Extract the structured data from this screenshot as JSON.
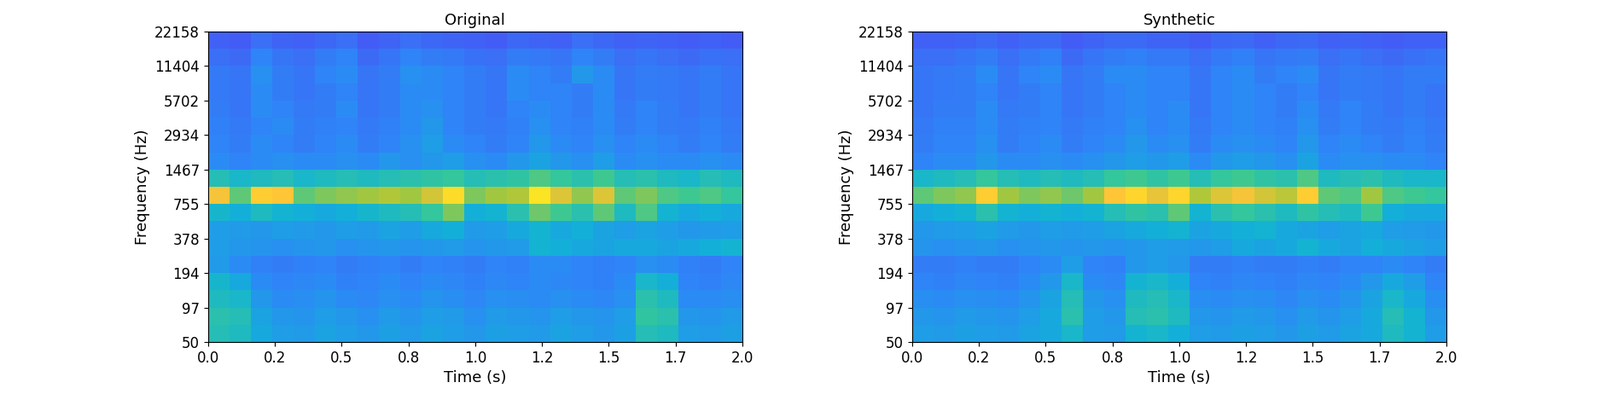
{
  "chart_data": [
    {
      "type": "heatmap",
      "title": "Original",
      "x_label": "Time (s)",
      "y_label": "Frequency (Hz)",
      "log": "y",
      "xlim": [
        0,
        2.0
      ],
      "xticks": [
        {
          "value": 0,
          "label": "0.0"
        },
        {
          "value": 0.25,
          "label": "0.2"
        },
        {
          "value": 0.5,
          "label": "0.5"
        },
        {
          "value": 0.75,
          "label": "0.8"
        },
        {
          "value": 1.0,
          "label": "1.0"
        },
        {
          "value": 1.25,
          "label": "1.2"
        },
        {
          "value": 1.5,
          "label": "1.5"
        },
        {
          "value": 1.75,
          "label": "1.7"
        },
        {
          "value": 2.0,
          "label": "2.0"
        }
      ],
      "ylim": [
        50,
        22158
      ],
      "yticks": [
        50,
        97,
        194,
        378,
        755,
        1467,
        2934,
        5702,
        11404,
        22158
      ],
      "color_range": [
        0,
        1
      ],
      "time_edges": [
        0,
        0.08,
        0.16,
        0.24,
        0.32,
        0.4,
        0.48,
        0.56,
        0.64,
        0.72,
        0.8,
        0.88,
        0.96,
        1.04,
        1.12,
        1.2,
        1.28,
        1.36,
        1.44,
        1.52,
        1.6,
        1.68,
        1.76,
        1.84,
        1.92,
        2.0
      ],
      "freq_edges": [
        50,
        70,
        98,
        138,
        194,
        272,
        381,
        535,
        751,
        1053,
        1478,
        2074,
        2910,
        4083,
        5728,
        8037,
        11276,
        15820,
        22158
      ],
      "cells": [
        [
          0.5,
          0.48,
          0.4,
          0.36,
          0.35,
          0.38,
          0.36,
          0.34,
          0.37,
          0.35,
          0.38,
          0.36,
          0.34,
          0.37,
          0.36,
          0.35,
          0.38,
          0.36,
          0.34,
          0.37,
          0.5,
          0.48,
          0.36,
          0.35,
          0.37
        ],
        [
          0.52,
          0.5,
          0.38,
          0.34,
          0.33,
          0.36,
          0.34,
          0.32,
          0.35,
          0.33,
          0.36,
          0.35,
          0.32,
          0.35,
          0.34,
          0.33,
          0.36,
          0.34,
          0.33,
          0.36,
          0.55,
          0.52,
          0.34,
          0.33,
          0.35
        ],
        [
          0.48,
          0.46,
          0.34,
          0.3,
          0.31,
          0.33,
          0.3,
          0.29,
          0.32,
          0.3,
          0.33,
          0.31,
          0.29,
          0.32,
          0.31,
          0.3,
          0.32,
          0.3,
          0.29,
          0.32,
          0.52,
          0.48,
          0.3,
          0.3,
          0.31
        ],
        [
          0.45,
          0.4,
          0.3,
          0.28,
          0.29,
          0.3,
          0.27,
          0.28,
          0.3,
          0.28,
          0.3,
          0.29,
          0.27,
          0.29,
          0.28,
          0.3,
          0.29,
          0.28,
          0.27,
          0.3,
          0.46,
          0.42,
          0.28,
          0.27,
          0.29
        ],
        [
          0.35,
          0.3,
          0.27,
          0.26,
          0.27,
          0.28,
          0.26,
          0.27,
          0.28,
          0.26,
          0.28,
          0.27,
          0.26,
          0.28,
          0.27,
          0.3,
          0.3,
          0.28,
          0.27,
          0.28,
          0.32,
          0.3,
          0.27,
          0.26,
          0.28
        ],
        [
          0.36,
          0.34,
          0.33,
          0.32,
          0.33,
          0.34,
          0.32,
          0.33,
          0.34,
          0.33,
          0.34,
          0.35,
          0.33,
          0.34,
          0.35,
          0.44,
          0.42,
          0.4,
          0.38,
          0.4,
          0.4,
          0.38,
          0.4,
          0.42,
          0.44
        ],
        [
          0.36,
          0.35,
          0.34,
          0.36,
          0.35,
          0.34,
          0.36,
          0.35,
          0.38,
          0.36,
          0.4,
          0.42,
          0.35,
          0.36,
          0.4,
          0.44,
          0.4,
          0.42,
          0.38,
          0.36,
          0.38,
          0.36,
          0.34,
          0.35,
          0.36
        ],
        [
          0.45,
          0.42,
          0.48,
          0.44,
          0.42,
          0.4,
          0.42,
          0.45,
          0.48,
          0.5,
          0.56,
          0.66,
          0.42,
          0.44,
          0.52,
          0.64,
          0.58,
          0.52,
          0.62,
          0.48,
          0.6,
          0.44,
          0.4,
          0.42,
          0.4
        ],
        [
          0.84,
          0.62,
          0.88,
          0.86,
          0.62,
          0.66,
          0.68,
          0.7,
          0.72,
          0.7,
          0.78,
          0.92,
          0.66,
          0.7,
          0.72,
          0.94,
          0.8,
          0.68,
          0.8,
          0.62,
          0.66,
          0.6,
          0.58,
          0.6,
          0.56
        ],
        [
          0.5,
          0.46,
          0.48,
          0.5,
          0.46,
          0.48,
          0.5,
          0.48,
          0.5,
          0.52,
          0.54,
          0.56,
          0.5,
          0.52,
          0.54,
          0.6,
          0.56,
          0.52,
          0.58,
          0.5,
          0.52,
          0.48,
          0.46,
          0.5,
          0.48
        ],
        [
          0.3,
          0.28,
          0.3,
          0.32,
          0.3,
          0.3,
          0.32,
          0.3,
          0.34,
          0.32,
          0.34,
          0.36,
          0.32,
          0.3,
          0.34,
          0.38,
          0.34,
          0.32,
          0.36,
          0.3,
          0.32,
          0.3,
          0.3,
          0.32,
          0.3
        ],
        [
          0.28,
          0.26,
          0.3,
          0.28,
          0.26,
          0.28,
          0.3,
          0.26,
          0.28,
          0.32,
          0.36,
          0.3,
          0.28,
          0.26,
          0.28,
          0.34,
          0.3,
          0.28,
          0.32,
          0.28,
          0.3,
          0.28,
          0.26,
          0.28,
          0.26
        ],
        [
          0.27,
          0.25,
          0.28,
          0.3,
          0.26,
          0.27,
          0.28,
          0.25,
          0.27,
          0.3,
          0.34,
          0.28,
          0.26,
          0.25,
          0.27,
          0.32,
          0.28,
          0.27,
          0.3,
          0.26,
          0.28,
          0.26,
          0.25,
          0.27,
          0.25
        ],
        [
          0.26,
          0.24,
          0.3,
          0.28,
          0.25,
          0.26,
          0.3,
          0.24,
          0.26,
          0.3,
          0.32,
          0.28,
          0.26,
          0.24,
          0.28,
          0.3,
          0.28,
          0.26,
          0.3,
          0.25,
          0.28,
          0.26,
          0.24,
          0.26,
          0.24
        ],
        [
          0.25,
          0.24,
          0.3,
          0.26,
          0.24,
          0.26,
          0.28,
          0.24,
          0.26,
          0.3,
          0.3,
          0.28,
          0.26,
          0.24,
          0.3,
          0.28,
          0.28,
          0.26,
          0.3,
          0.24,
          0.26,
          0.25,
          0.24,
          0.26,
          0.24
        ],
        [
          0.25,
          0.24,
          0.32,
          0.26,
          0.24,
          0.28,
          0.3,
          0.24,
          0.26,
          0.32,
          0.3,
          0.28,
          0.26,
          0.24,
          0.3,
          0.28,
          0.26,
          0.34,
          0.3,
          0.24,
          0.26,
          0.25,
          0.24,
          0.26,
          0.24
        ],
        [
          0.22,
          0.21,
          0.28,
          0.24,
          0.22,
          0.26,
          0.28,
          0.21,
          0.24,
          0.28,
          0.26,
          0.25,
          0.23,
          0.22,
          0.26,
          0.25,
          0.24,
          0.28,
          0.26,
          0.22,
          0.24,
          0.22,
          0.21,
          0.23,
          0.22
        ],
        [
          0.18,
          0.17,
          0.22,
          0.19,
          0.18,
          0.2,
          0.22,
          0.17,
          0.19,
          0.22,
          0.2,
          0.19,
          0.18,
          0.17,
          0.2,
          0.19,
          0.18,
          0.22,
          0.2,
          0.18,
          0.19,
          0.18,
          0.17,
          0.18,
          0.17
        ]
      ]
    },
    {
      "type": "heatmap",
      "title": "Synthetic",
      "x_label": "Time (s)",
      "y_label": "Frequency (Hz)",
      "log": "y",
      "xlim": [
        0,
        2.0
      ],
      "xticks": [
        {
          "value": 0,
          "label": "0.0"
        },
        {
          "value": 0.25,
          "label": "0.2"
        },
        {
          "value": 0.5,
          "label": "0.5"
        },
        {
          "value": 0.75,
          "label": "0.8"
        },
        {
          "value": 1.0,
          "label": "1.0"
        },
        {
          "value": 1.25,
          "label": "1.2"
        },
        {
          "value": 1.5,
          "label": "1.5"
        },
        {
          "value": 1.75,
          "label": "1.7"
        },
        {
          "value": 2.0,
          "label": "2.0"
        }
      ],
      "ylim": [
        50,
        22158
      ],
      "yticks": [
        50,
        97,
        194,
        378,
        755,
        1467,
        2934,
        5702,
        11404,
        22158
      ],
      "color_range": [
        0,
        1
      ],
      "time_edges": [
        0,
        0.08,
        0.16,
        0.24,
        0.32,
        0.4,
        0.48,
        0.56,
        0.64,
        0.72,
        0.8,
        0.88,
        0.96,
        1.04,
        1.12,
        1.2,
        1.28,
        1.36,
        1.44,
        1.52,
        1.6,
        1.68,
        1.76,
        1.84,
        1.92,
        2.0
      ],
      "freq_edges": [
        50,
        70,
        98,
        138,
        194,
        272,
        381,
        535,
        751,
        1053,
        1478,
        2074,
        2910,
        4083,
        5728,
        8037,
        11276,
        15820,
        22158
      ],
      "cells": [
        [
          0.36,
          0.35,
          0.37,
          0.36,
          0.35,
          0.38,
          0.4,
          0.46,
          0.36,
          0.35,
          0.44,
          0.46,
          0.42,
          0.36,
          0.35,
          0.37,
          0.36,
          0.34,
          0.37,
          0.35,
          0.38,
          0.4,
          0.48,
          0.44,
          0.36
        ],
        [
          0.34,
          0.33,
          0.35,
          0.34,
          0.33,
          0.36,
          0.4,
          0.52,
          0.36,
          0.34,
          0.5,
          0.52,
          0.48,
          0.34,
          0.33,
          0.35,
          0.34,
          0.32,
          0.35,
          0.33,
          0.36,
          0.4,
          0.5,
          0.44,
          0.34
        ],
        [
          0.31,
          0.3,
          0.32,
          0.31,
          0.3,
          0.33,
          0.38,
          0.5,
          0.34,
          0.32,
          0.48,
          0.5,
          0.46,
          0.31,
          0.3,
          0.32,
          0.31,
          0.29,
          0.32,
          0.3,
          0.33,
          0.38,
          0.46,
          0.4,
          0.31
        ],
        [
          0.28,
          0.27,
          0.29,
          0.28,
          0.27,
          0.3,
          0.34,
          0.46,
          0.3,
          0.29,
          0.44,
          0.46,
          0.42,
          0.28,
          0.27,
          0.29,
          0.28,
          0.27,
          0.29,
          0.28,
          0.3,
          0.34,
          0.4,
          0.36,
          0.28
        ],
        [
          0.26,
          0.26,
          0.27,
          0.26,
          0.26,
          0.28,
          0.3,
          0.36,
          0.28,
          0.27,
          0.34,
          0.36,
          0.34,
          0.26,
          0.26,
          0.27,
          0.26,
          0.26,
          0.27,
          0.26,
          0.28,
          0.28,
          0.3,
          0.28,
          0.26
        ],
        [
          0.33,
          0.32,
          0.33,
          0.34,
          0.32,
          0.33,
          0.34,
          0.33,
          0.34,
          0.33,
          0.34,
          0.36,
          0.35,
          0.34,
          0.36,
          0.4,
          0.38,
          0.4,
          0.44,
          0.4,
          0.38,
          0.42,
          0.4,
          0.38,
          0.36
        ],
        [
          0.34,
          0.35,
          0.36,
          0.38,
          0.35,
          0.34,
          0.36,
          0.35,
          0.36,
          0.38,
          0.4,
          0.42,
          0.44,
          0.38,
          0.4,
          0.42,
          0.44,
          0.4,
          0.38,
          0.36,
          0.38,
          0.4,
          0.36,
          0.35,
          0.34
        ],
        [
          0.4,
          0.42,
          0.44,
          0.52,
          0.44,
          0.42,
          0.44,
          0.42,
          0.44,
          0.5,
          0.54,
          0.52,
          0.62,
          0.44,
          0.52,
          0.56,
          0.52,
          0.48,
          0.54,
          0.5,
          0.48,
          0.58,
          0.42,
          0.4,
          0.4
        ],
        [
          0.62,
          0.66,
          0.68,
          0.88,
          0.7,
          0.66,
          0.68,
          0.64,
          0.7,
          0.86,
          0.9,
          0.82,
          0.9,
          0.72,
          0.8,
          0.84,
          0.78,
          0.74,
          0.88,
          0.62,
          0.6,
          0.7,
          0.6,
          0.58,
          0.56
        ],
        [
          0.46,
          0.48,
          0.5,
          0.56,
          0.5,
          0.48,
          0.5,
          0.48,
          0.5,
          0.56,
          0.58,
          0.54,
          0.58,
          0.5,
          0.56,
          0.58,
          0.54,
          0.52,
          0.6,
          0.48,
          0.5,
          0.52,
          0.48,
          0.46,
          0.46
        ],
        [
          0.28,
          0.3,
          0.3,
          0.34,
          0.3,
          0.3,
          0.32,
          0.3,
          0.32,
          0.34,
          0.36,
          0.34,
          0.36,
          0.3,
          0.34,
          0.36,
          0.34,
          0.32,
          0.38,
          0.3,
          0.32,
          0.32,
          0.3,
          0.3,
          0.28
        ],
        [
          0.26,
          0.28,
          0.28,
          0.32,
          0.26,
          0.28,
          0.3,
          0.26,
          0.28,
          0.3,
          0.34,
          0.3,
          0.32,
          0.26,
          0.3,
          0.32,
          0.3,
          0.28,
          0.34,
          0.28,
          0.3,
          0.28,
          0.26,
          0.28,
          0.26
        ],
        [
          0.25,
          0.27,
          0.27,
          0.3,
          0.26,
          0.27,
          0.28,
          0.25,
          0.27,
          0.28,
          0.32,
          0.28,
          0.3,
          0.25,
          0.28,
          0.3,
          0.28,
          0.27,
          0.32,
          0.26,
          0.28,
          0.26,
          0.25,
          0.27,
          0.25
        ],
        [
          0.24,
          0.26,
          0.26,
          0.3,
          0.25,
          0.26,
          0.28,
          0.24,
          0.26,
          0.28,
          0.3,
          0.28,
          0.3,
          0.24,
          0.28,
          0.3,
          0.28,
          0.26,
          0.3,
          0.25,
          0.28,
          0.26,
          0.24,
          0.26,
          0.24
        ],
        [
          0.24,
          0.25,
          0.26,
          0.28,
          0.24,
          0.26,
          0.28,
          0.24,
          0.26,
          0.28,
          0.3,
          0.28,
          0.28,
          0.24,
          0.28,
          0.3,
          0.28,
          0.26,
          0.28,
          0.24,
          0.26,
          0.25,
          0.24,
          0.26,
          0.24
        ],
        [
          0.24,
          0.25,
          0.26,
          0.3,
          0.24,
          0.28,
          0.3,
          0.24,
          0.26,
          0.3,
          0.3,
          0.28,
          0.28,
          0.24,
          0.28,
          0.3,
          0.26,
          0.28,
          0.3,
          0.24,
          0.26,
          0.25,
          0.24,
          0.26,
          0.26
        ],
        [
          0.22,
          0.22,
          0.24,
          0.26,
          0.22,
          0.25,
          0.27,
          0.21,
          0.24,
          0.26,
          0.27,
          0.25,
          0.25,
          0.22,
          0.25,
          0.27,
          0.24,
          0.25,
          0.26,
          0.22,
          0.24,
          0.22,
          0.21,
          0.23,
          0.24
        ],
        [
          0.18,
          0.18,
          0.19,
          0.21,
          0.18,
          0.2,
          0.21,
          0.17,
          0.19,
          0.21,
          0.21,
          0.19,
          0.19,
          0.17,
          0.2,
          0.21,
          0.18,
          0.2,
          0.21,
          0.18,
          0.19,
          0.18,
          0.17,
          0.18,
          0.18
        ]
      ]
    }
  ]
}
